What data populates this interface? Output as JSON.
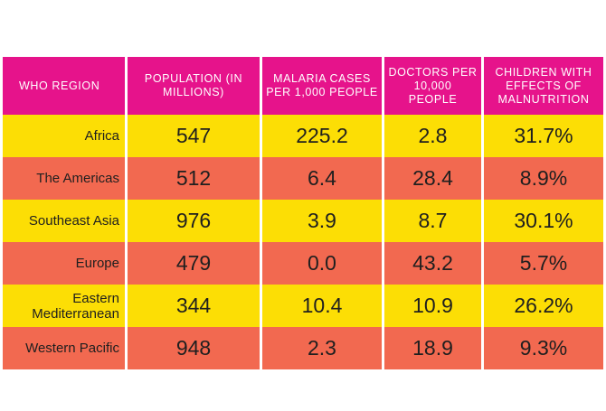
{
  "headers": [
    "WHO REGION",
    "POPULATION (IN MILLIONS)",
    "MALARIA CASES PER 1,000 PEOPLE",
    "DOCTORS PER 10,000 PEOPLE",
    "CHILDREN WITH EFFECTS OF MALNUTRITION"
  ],
  "rows": [
    {
      "region": "Africa",
      "population": "547",
      "malaria": "225.2",
      "doctors": "2.8",
      "malnutrition": "31.7%"
    },
    {
      "region": "The Americas",
      "population": "512",
      "malaria": "6.4",
      "doctors": "28.4",
      "malnutrition": "8.9%"
    },
    {
      "region": "Southeast Asia",
      "population": "976",
      "malaria": "3.9",
      "doctors": "8.7",
      "malnutrition": "30.1%"
    },
    {
      "region": "Europe",
      "population": "479",
      "malaria": "0.0",
      "doctors": "43.2",
      "malnutrition": "5.7%"
    },
    {
      "region": "Eastern Mediterranean",
      "population": "344",
      "malaria": "10.4",
      "doctors": "10.9",
      "malnutrition": "26.2%"
    },
    {
      "region": "Western Pacific",
      "population": "948",
      "malaria": "2.3",
      "doctors": "18.9",
      "malnutrition": "9.3%"
    }
  ],
  "colors": {
    "header": "#e6138b",
    "row_yellow": "#fcde05",
    "row_orange": "#f26950"
  }
}
